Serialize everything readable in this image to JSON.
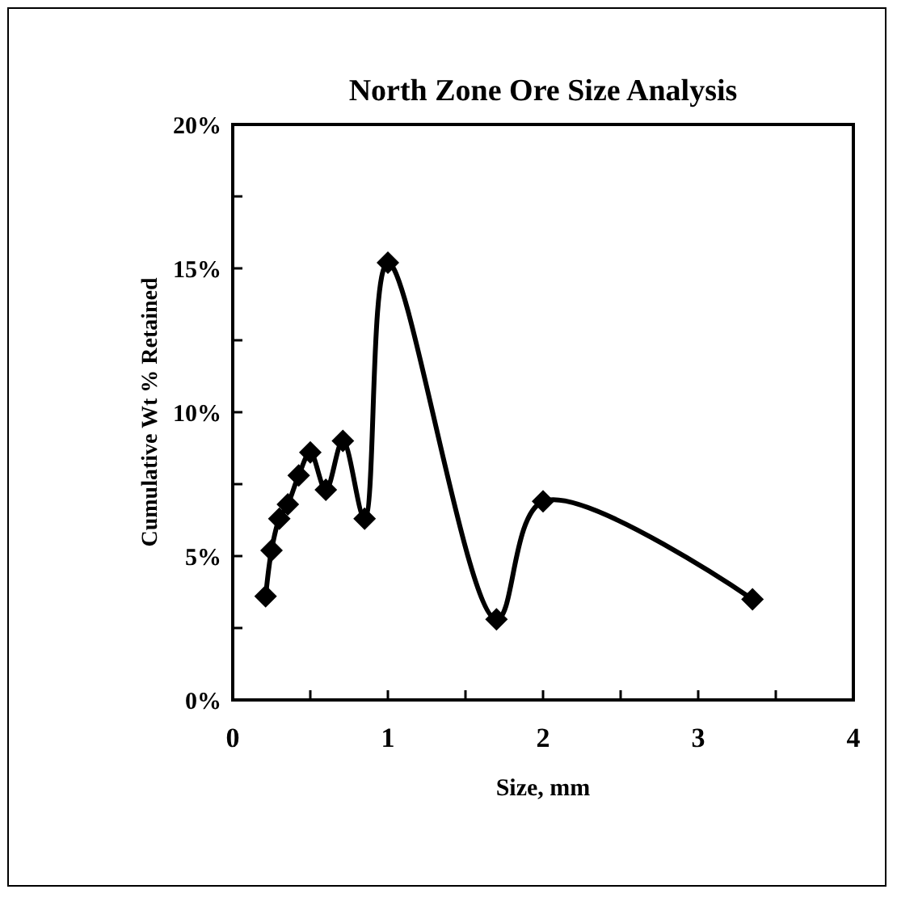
{
  "chart_data": {
    "type": "line",
    "title": "North Zone Ore Size Analysis",
    "xlabel": "Size, mm",
    "ylabel": "Cumulative Wt % Retained",
    "x": [
      0.212,
      0.25,
      0.3,
      0.355,
      0.425,
      0.5,
      0.6,
      0.71,
      0.85,
      1.0,
      1.7,
      2.0,
      3.35
    ],
    "series": [
      {
        "color": "#000000",
        "values": [
          3.6,
          5.2,
          6.3,
          6.8,
          7.8,
          8.6,
          7.3,
          9.0,
          6.3,
          15.2,
          2.8,
          6.9,
          3.5
        ]
      }
    ],
    "xlim": [
      0,
      4
    ],
    "xticks": [
      0,
      {
        "value": 0.5,
        "label": null
      },
      1,
      {
        "value": 1.5,
        "label": null
      },
      2,
      {
        "value": 2.5,
        "label": null
      },
      3,
      {
        "value": 3.5,
        "label": null
      },
      4
    ],
    "ylim": [
      0,
      20
    ],
    "yticks": [
      {
        "value": 0,
        "label": "0%"
      },
      {
        "value": 2.5,
        "label": null
      },
      {
        "value": 5,
        "label": "5%"
      },
      {
        "value": 7.5,
        "label": null
      },
      {
        "value": 10,
        "label": "10%"
      },
      {
        "value": 12.5,
        "label": null
      },
      {
        "value": 15,
        "label": "15%"
      },
      {
        "value": 17.5,
        "label": null
      },
      {
        "value": 20,
        "label": "20%"
      }
    ],
    "grid": false,
    "marker": "diamond",
    "line_style": "solid"
  }
}
